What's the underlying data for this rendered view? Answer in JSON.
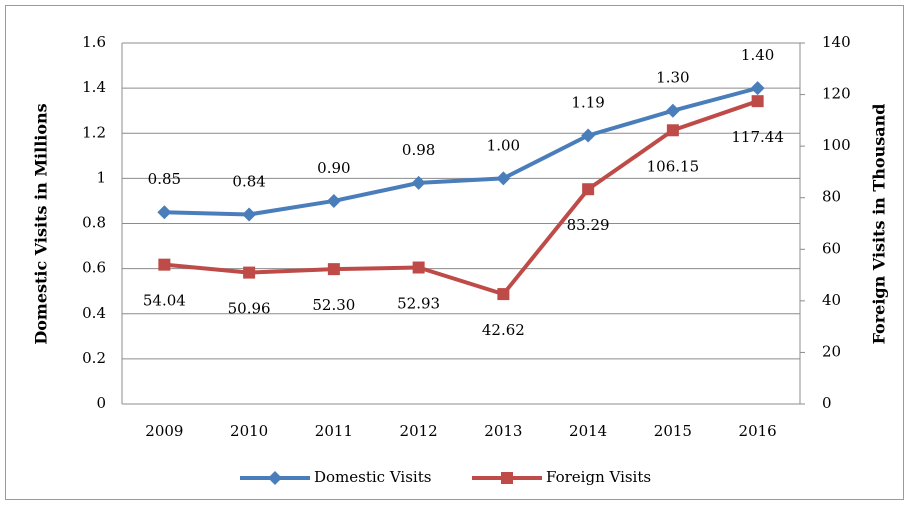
{
  "chart_data": {
    "type": "line",
    "categories": [
      "2009",
      "2010",
      "2011",
      "2012",
      "2013",
      "2014",
      "2015",
      "2016"
    ],
    "ylabel": "Domestic Visits in Millions",
    "y2label": "Foreign Visits in Thousand",
    "ylim": [
      0,
      1.6
    ],
    "yticks": [
      0,
      0.2,
      0.4,
      0.6,
      0.8,
      1,
      1.2,
      1.4,
      1.6
    ],
    "y2lim": [
      0,
      140
    ],
    "y2ticks": [
      0,
      20,
      40,
      60,
      80,
      100,
      120,
      140
    ],
    "grid": true,
    "legend": "bottom",
    "series": [
      {
        "name": "Domestic Visits",
        "color": "#4a7ebb",
        "marker": "diamond",
        "values": [
          0.85,
          0.84,
          0.9,
          0.98,
          1.0,
          1.19,
          1.3,
          1.4
        ],
        "value_labels": [
          "0.85",
          "0.84",
          "0.90",
          "0.98",
          "1.00",
          "1.19",
          "1.30",
          "1.40"
        ]
      },
      {
        "name": "Foreign Visits",
        "color": "#be4b48",
        "marker": "square",
        "axis": "y2",
        "values": [
          54.04,
          50.96,
          52.3,
          52.93,
          42.62,
          83.29,
          106.15,
          117.44
        ],
        "value_labels": [
          "54.04",
          "50.96",
          "52.30",
          "52.93",
          "42.62",
          "83.29",
          "106.15",
          "117.44"
        ]
      }
    ]
  }
}
